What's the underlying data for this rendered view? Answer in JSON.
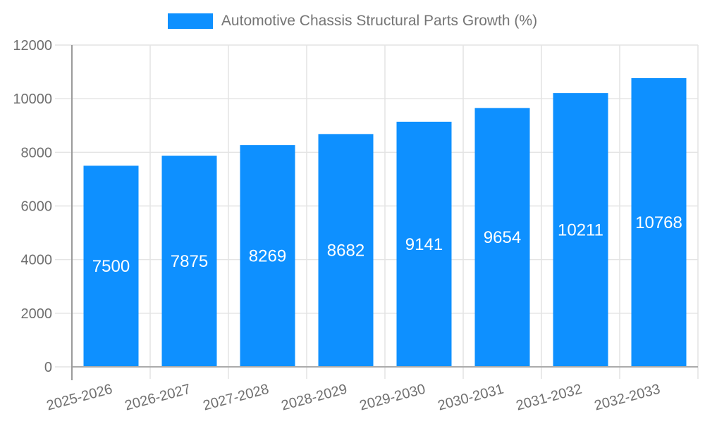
{
  "legend": {
    "label": "Automotive Chassis Structural Parts Growth (%)"
  },
  "chart_data": {
    "type": "bar",
    "title": "Automotive Chassis Structural Parts Growth (%)",
    "categories": [
      "2025-2026",
      "2026-2027",
      "2027-2028",
      "2028-2029",
      "2029-2030",
      "2030-2031",
      "2031-2032",
      "2032-2033"
    ],
    "values": [
      7500,
      7875,
      8269,
      8682,
      9141,
      9654,
      10211,
      10768
    ],
    "value_labels": [
      "7500",
      "7875",
      "8269",
      "8682",
      "9141",
      "9654",
      "10211",
      "10768"
    ],
    "xlabel": "",
    "ylabel": "",
    "ylim": [
      0,
      12000
    ],
    "yticks": [
      0,
      2000,
      4000,
      6000,
      8000,
      10000,
      12000
    ],
    "ytick_labels": [
      "0",
      "2000",
      "4000",
      "6000",
      "8000",
      "10000",
      "12000"
    ],
    "grid": "on",
    "legend_position": "top-center",
    "x_tick_rotation_deg": -15,
    "colors": {
      "bar": "#0E90FF",
      "value_label": "#FFFFFF",
      "axis_text": "#6F6F6F",
      "title_text": "#757575",
      "gridline": "#E4E4E4",
      "y_axis_line": "#9B9B9B",
      "x_axis_line": "#ABABAB"
    }
  }
}
